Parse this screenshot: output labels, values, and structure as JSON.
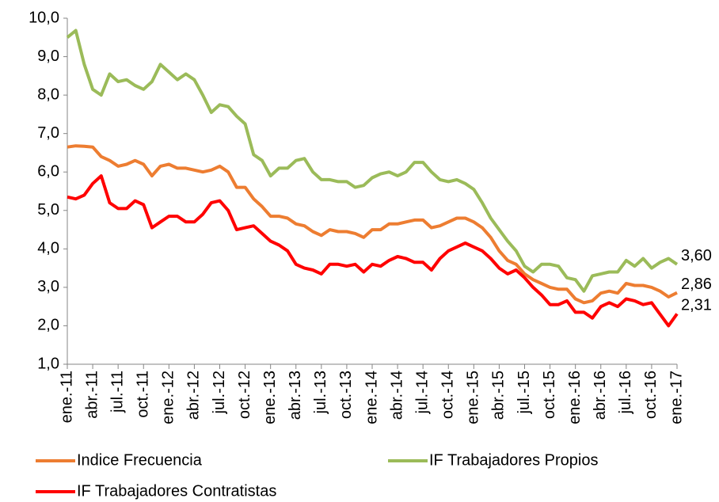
{
  "chart_data": {
    "type": "line",
    "categories": [
      "ene.-11",
      null,
      null,
      "abr.-11",
      null,
      null,
      "jul.-11",
      null,
      null,
      "oct.-11",
      null,
      null,
      "ene.-12",
      null,
      null,
      "abr.-12",
      null,
      null,
      "jul.-12",
      null,
      null,
      "oct.-12",
      null,
      null,
      "ene.-13",
      null,
      null,
      "abr.-13",
      null,
      null,
      "jul.-13",
      null,
      null,
      "oct.-13",
      null,
      null,
      "ene.-14",
      null,
      null,
      "abr.-14",
      null,
      null,
      "jul.-14",
      null,
      null,
      "oct.-14",
      null,
      null,
      "ene.-15",
      null,
      null,
      "abr.-15",
      null,
      null,
      "jul.-15",
      null,
      null,
      "oct.-15",
      null,
      null,
      "ene.-16",
      null,
      null,
      "abr.-16",
      null,
      null,
      "jul.-16",
      null,
      null,
      "oct.-16",
      null,
      null,
      "ene.-17"
    ],
    "series": [
      {
        "name": "Indice Frecuencia",
        "color": "#ED7D31",
        "values": [
          6.65,
          6.68,
          6.67,
          6.65,
          6.4,
          6.3,
          6.15,
          6.2,
          6.3,
          6.2,
          5.9,
          6.15,
          6.2,
          6.1,
          6.1,
          6.05,
          6.0,
          6.05,
          6.15,
          6.0,
          5.6,
          5.6,
          5.3,
          5.1,
          4.85,
          4.85,
          4.8,
          4.65,
          4.6,
          4.45,
          4.35,
          4.5,
          4.45,
          4.45,
          4.4,
          4.3,
          4.5,
          4.5,
          4.65,
          4.65,
          4.7,
          4.75,
          4.75,
          4.55,
          4.6,
          4.7,
          4.8,
          4.8,
          4.7,
          4.55,
          4.3,
          3.95,
          3.7,
          3.6,
          3.35,
          3.2,
          3.1,
          3.0,
          2.95,
          2.95,
          2.7,
          2.6,
          2.65,
          2.85,
          2.9,
          2.85,
          3.1,
          3.05,
          3.05,
          3.0,
          2.9,
          2.75,
          2.86
        ],
        "value_labels": [
          null,
          null,
          null,
          null,
          null,
          null,
          null,
          null,
          null,
          null,
          null,
          null,
          null,
          null,
          null,
          null,
          null,
          null,
          null,
          null,
          null,
          null,
          null,
          null,
          null,
          null,
          null,
          null,
          null,
          null,
          null,
          null,
          null,
          null,
          null,
          null,
          null,
          null,
          null,
          null,
          null,
          null,
          null,
          null,
          null,
          null,
          null,
          null,
          null,
          null,
          null,
          null,
          null,
          null,
          null,
          null,
          null,
          null,
          null,
          null,
          null,
          null,
          null,
          null,
          null,
          null,
          null,
          null,
          null,
          null,
          null,
          null,
          "2,86"
        ]
      },
      {
        "name": "IF Trabajadores Propios",
        "color": "#9BBB59",
        "values": [
          9.5,
          9.68,
          8.8,
          8.15,
          8.0,
          8.55,
          8.35,
          8.4,
          8.25,
          8.15,
          8.35,
          8.8,
          8.6,
          8.4,
          8.55,
          8.4,
          8.0,
          7.55,
          7.75,
          7.7,
          7.45,
          7.25,
          6.45,
          6.3,
          5.9,
          6.1,
          6.1,
          6.3,
          6.35,
          6.0,
          5.8,
          5.8,
          5.75,
          5.75,
          5.6,
          5.65,
          5.85,
          5.95,
          6.0,
          5.9,
          6.0,
          6.25,
          6.25,
          6.0,
          5.8,
          5.75,
          5.8,
          5.7,
          5.55,
          5.2,
          4.8,
          4.5,
          4.2,
          3.95,
          3.55,
          3.4,
          3.6,
          3.6,
          3.55,
          3.25,
          3.2,
          2.9,
          3.3,
          3.35,
          3.4,
          3.4,
          3.7,
          3.55,
          3.75,
          3.5,
          3.65,
          3.75,
          3.6
        ],
        "value_labels": [
          null,
          null,
          null,
          null,
          null,
          null,
          null,
          null,
          null,
          null,
          null,
          null,
          null,
          null,
          null,
          null,
          null,
          null,
          null,
          null,
          null,
          null,
          null,
          null,
          null,
          null,
          null,
          null,
          null,
          null,
          null,
          null,
          null,
          null,
          null,
          null,
          null,
          null,
          null,
          null,
          null,
          null,
          null,
          null,
          null,
          null,
          null,
          null,
          null,
          null,
          null,
          null,
          null,
          null,
          null,
          null,
          null,
          null,
          null,
          null,
          null,
          null,
          null,
          null,
          null,
          null,
          null,
          null,
          null,
          null,
          null,
          null,
          "3,60"
        ]
      },
      {
        "name": "IF Trabajadores Contratistas",
        "color": "#FF0000",
        "values": [
          5.35,
          5.3,
          5.4,
          5.7,
          5.9,
          5.2,
          5.05,
          5.05,
          5.25,
          5.15,
          4.55,
          4.7,
          4.85,
          4.85,
          4.7,
          4.7,
          4.9,
          5.2,
          5.25,
          5.0,
          4.5,
          4.55,
          4.6,
          4.4,
          4.2,
          4.1,
          3.95,
          3.6,
          3.5,
          3.45,
          3.35,
          3.6,
          3.6,
          3.55,
          3.6,
          3.4,
          3.6,
          3.55,
          3.7,
          3.8,
          3.75,
          3.65,
          3.65,
          3.45,
          3.75,
          3.95,
          4.05,
          4.15,
          4.05,
          3.95,
          3.75,
          3.5,
          3.35,
          3.45,
          3.25,
          3.0,
          2.8,
          2.55,
          2.55,
          2.65,
          2.35,
          2.35,
          2.2,
          2.5,
          2.6,
          2.5,
          2.7,
          2.65,
          2.55,
          2.6,
          2.3,
          2.0,
          2.31
        ],
        "value_labels": [
          null,
          null,
          null,
          null,
          null,
          null,
          null,
          null,
          null,
          null,
          null,
          null,
          null,
          null,
          null,
          null,
          null,
          null,
          null,
          null,
          null,
          null,
          null,
          null,
          null,
          null,
          null,
          null,
          null,
          null,
          null,
          null,
          null,
          null,
          null,
          null,
          null,
          null,
          null,
          null,
          null,
          null,
          null,
          null,
          null,
          null,
          null,
          null,
          null,
          null,
          null,
          null,
          null,
          null,
          null,
          null,
          null,
          null,
          null,
          null,
          null,
          null,
          null,
          null,
          null,
          null,
          null,
          null,
          null,
          null,
          null,
          null,
          "2,31"
        ]
      }
    ],
    "ylim": [
      1,
      10
    ],
    "yticks": [
      {
        "value": 1,
        "label": "1,0"
      },
      {
        "value": 2,
        "label": "2,0"
      },
      {
        "value": 3,
        "label": "3,0"
      },
      {
        "value": 4,
        "label": "4,0"
      },
      {
        "value": 5,
        "label": "5,0"
      },
      {
        "value": 6,
        "label": "6,0"
      },
      {
        "value": 7,
        "label": "7,0"
      },
      {
        "value": 8,
        "label": "8,0"
      },
      {
        "value": 9,
        "label": "9,0"
      },
      {
        "value": 10,
        "label": "10,0"
      }
    ],
    "grid": false,
    "legend": "bottom"
  }
}
